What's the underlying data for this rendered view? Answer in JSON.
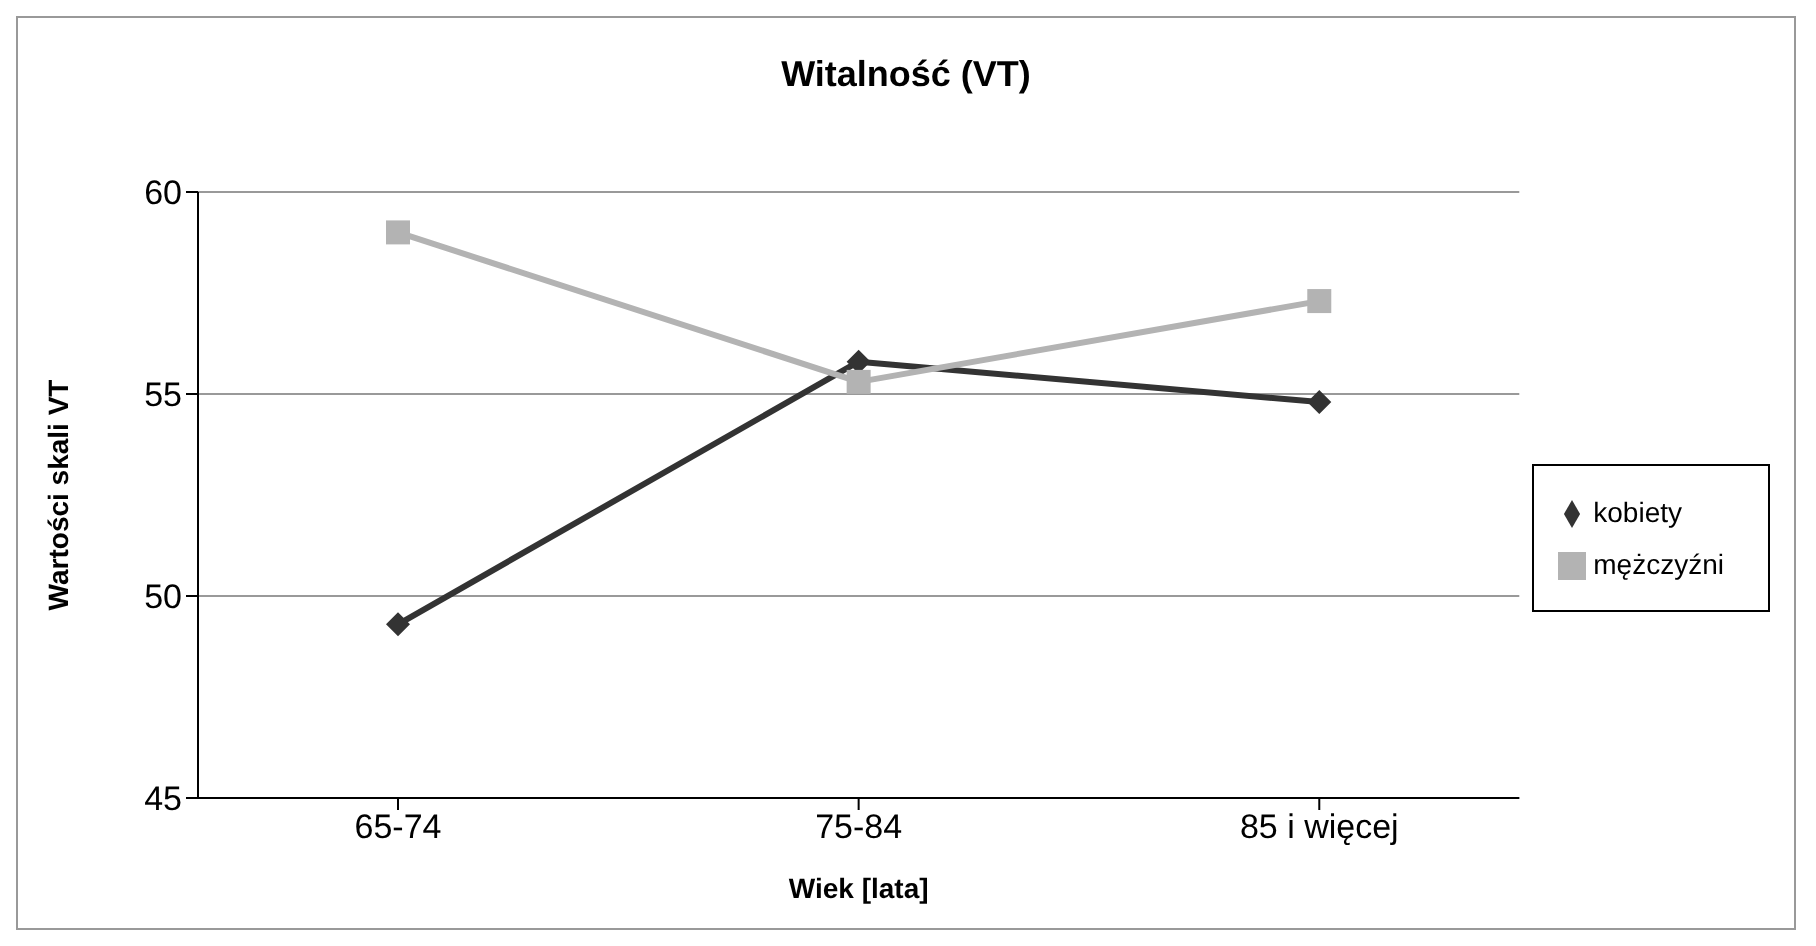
{
  "chart_data": {
    "type": "line",
    "title": "Witalność (VT)",
    "xlabel": "Wiek [lata]",
    "ylabel": "Wartości skali VT",
    "categories": [
      "65-74",
      "75-84",
      "85 i więcej"
    ],
    "series": [
      {
        "name": "kobiety",
        "color": "#333333",
        "marker": "diamond",
        "values": [
          49.3,
          55.8,
          54.8
        ]
      },
      {
        "name": "mężczyźni",
        "color": "#b3b3b3",
        "marker": "square",
        "values": [
          59.0,
          55.3,
          57.3
        ]
      }
    ],
    "ylim": [
      45,
      60
    ],
    "yticks": [
      45,
      50,
      55,
      60
    ],
    "grid": "y",
    "legend": "right",
    "line_style": "solid"
  }
}
